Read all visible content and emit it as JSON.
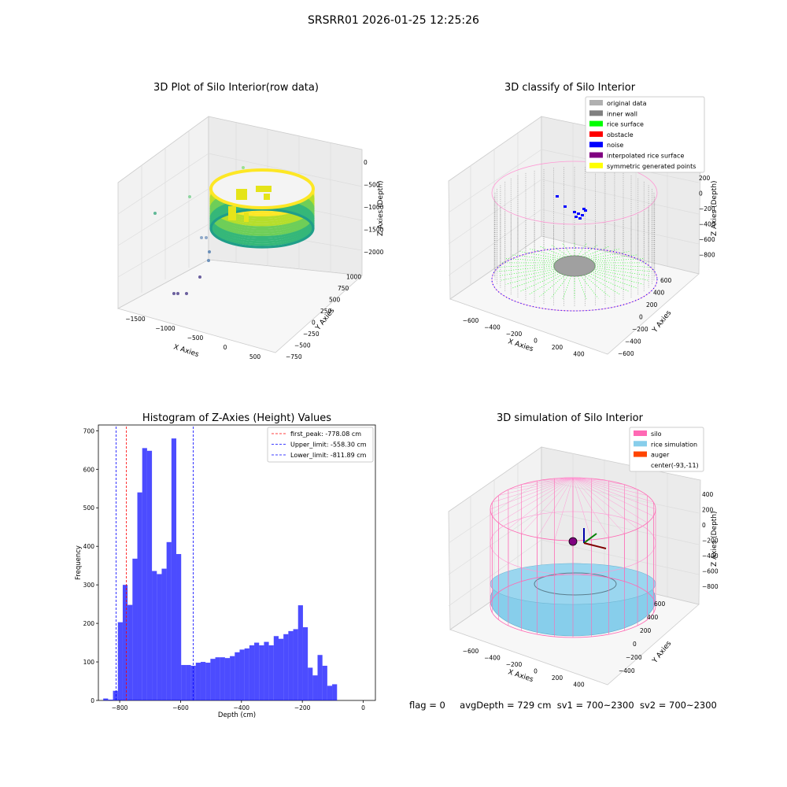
{
  "figure_title": "SRSRR01 2026-01-25 12:25:26",
  "panels": {
    "raw": {
      "title": "3D Plot of Silo Interior(row data)",
      "xlabel": "X Axies",
      "ylabel": "Y Axies",
      "zlabel": "Z Axies (Depth)",
      "xticks": [
        "-1500",
        "-1000",
        "-500",
        "0",
        "500"
      ],
      "yticks": [
        "-750",
        "-500",
        "-250",
        "0",
        "250",
        "500",
        "750",
        "1000"
      ],
      "zticks": [
        "0",
        "-500",
        "-1000",
        "-1500",
        "-2000"
      ]
    },
    "classify": {
      "title": "3D classify of Silo Interior",
      "xlabel": "X Axies",
      "ylabel": "Y Axies",
      "zlabel": "Z Axies (Depth)",
      "xticks": [
        "-600",
        "-400",
        "-200",
        "0",
        "200",
        "400"
      ],
      "yticks": [
        "-600",
        "-400",
        "-200",
        "0",
        "200",
        "400",
        "600"
      ],
      "zticks": [
        "200",
        "0",
        "-200",
        "-400",
        "-600",
        "-800"
      ],
      "legend": [
        {
          "label": "original data",
          "color": "#b0b0b0"
        },
        {
          "label": "inner wall",
          "color": "#808080"
        },
        {
          "label": "rice surface",
          "color": "#00ff00"
        },
        {
          "label": "obstacle",
          "color": "#ff0000"
        },
        {
          "label": "noise",
          "color": "#0000ff"
        },
        {
          "label": "interpolated rice surface",
          "color": "#800080"
        },
        {
          "label": "symmetric generated points",
          "color": "#ffff00"
        }
      ]
    },
    "simulation": {
      "title": "3D simulation of Silo Interior",
      "xlabel": "X Axies",
      "ylabel": "Y Axies",
      "zlabel": "Z Axies (Depth)",
      "xticks": [
        "-600",
        "-400",
        "-200",
        "0",
        "200",
        "400"
      ],
      "yticks": [
        "-400",
        "-200",
        "0",
        "200",
        "400",
        "600"
      ],
      "zticks": [
        "400",
        "200",
        "0",
        "-200",
        "-400",
        "-600",
        "-800"
      ],
      "legend": [
        {
          "label": "silo",
          "color": "#ff69b4"
        },
        {
          "label": "rice simulation",
          "color": "#87ceeb"
        },
        {
          "label": "auger",
          "color": "#ff4500"
        },
        {
          "label": "center(-93,-11)",
          "color": ""
        }
      ]
    }
  },
  "status": {
    "flag": "flag = 0",
    "avg_depth": "avgDepth = 729 cm",
    "sv1": "sv1 = 700~2300",
    "sv2": "sv2 = 700~2300"
  },
  "chart_data": [
    {
      "type": "bar",
      "title": "Histogram of Z-Axies (Height) Values",
      "xlabel": "Depth (cm)",
      "ylabel": "Frequency",
      "xlim": [
        -870,
        40
      ],
      "ylim": [
        0,
        715
      ],
      "bar_color": "#0000ff",
      "bin_width": 16,
      "bins_start": [
        -854,
        -838,
        -822,
        -806,
        -790,
        -774,
        -758,
        -742,
        -726,
        -710,
        -694,
        -678,
        -662,
        -646,
        -630,
        -614,
        -598,
        -582,
        -566,
        -550,
        -534,
        -518,
        -502,
        -486,
        -470,
        -454,
        -438,
        -422,
        -406,
        -390,
        -374,
        -358,
        -342,
        -326,
        -310,
        -294,
        -278,
        -262,
        -246,
        -230,
        -214,
        -198,
        -182,
        -166,
        -150,
        -134,
        -118,
        -102,
        -86,
        -70,
        -54,
        -38,
        -22,
        -6
      ],
      "values": [
        5,
        2,
        25,
        203,
        300,
        248,
        368,
        540,
        655,
        648,
        336,
        328,
        342,
        411,
        680,
        380,
        92,
        92,
        90,
        98,
        100,
        98,
        108,
        112,
        112,
        110,
        115,
        125,
        132,
        135,
        143,
        150,
        143,
        152,
        143,
        167,
        160,
        172,
        180,
        185,
        247,
        190,
        85,
        65,
        118,
        90,
        38,
        42,
        0,
        0,
        0,
        0,
        0,
        0
      ],
      "xticks": [
        "-800",
        "-600",
        "-400",
        "-200",
        "0"
      ],
      "yticks": [
        "0",
        "100",
        "200",
        "300",
        "400",
        "500",
        "600",
        "700"
      ],
      "lines": [
        {
          "label": "first_peak: -778.08 cm",
          "x": -778.08,
          "color": "#ff0000"
        },
        {
          "label": "Upper_limit: -558.30 cm",
          "x": -558.3,
          "color": "#0000ff"
        },
        {
          "label": "Lower_limit: -811.89 cm",
          "x": -811.89,
          "color": "#0000ff"
        }
      ],
      "legend_position": "top-right"
    }
  ]
}
